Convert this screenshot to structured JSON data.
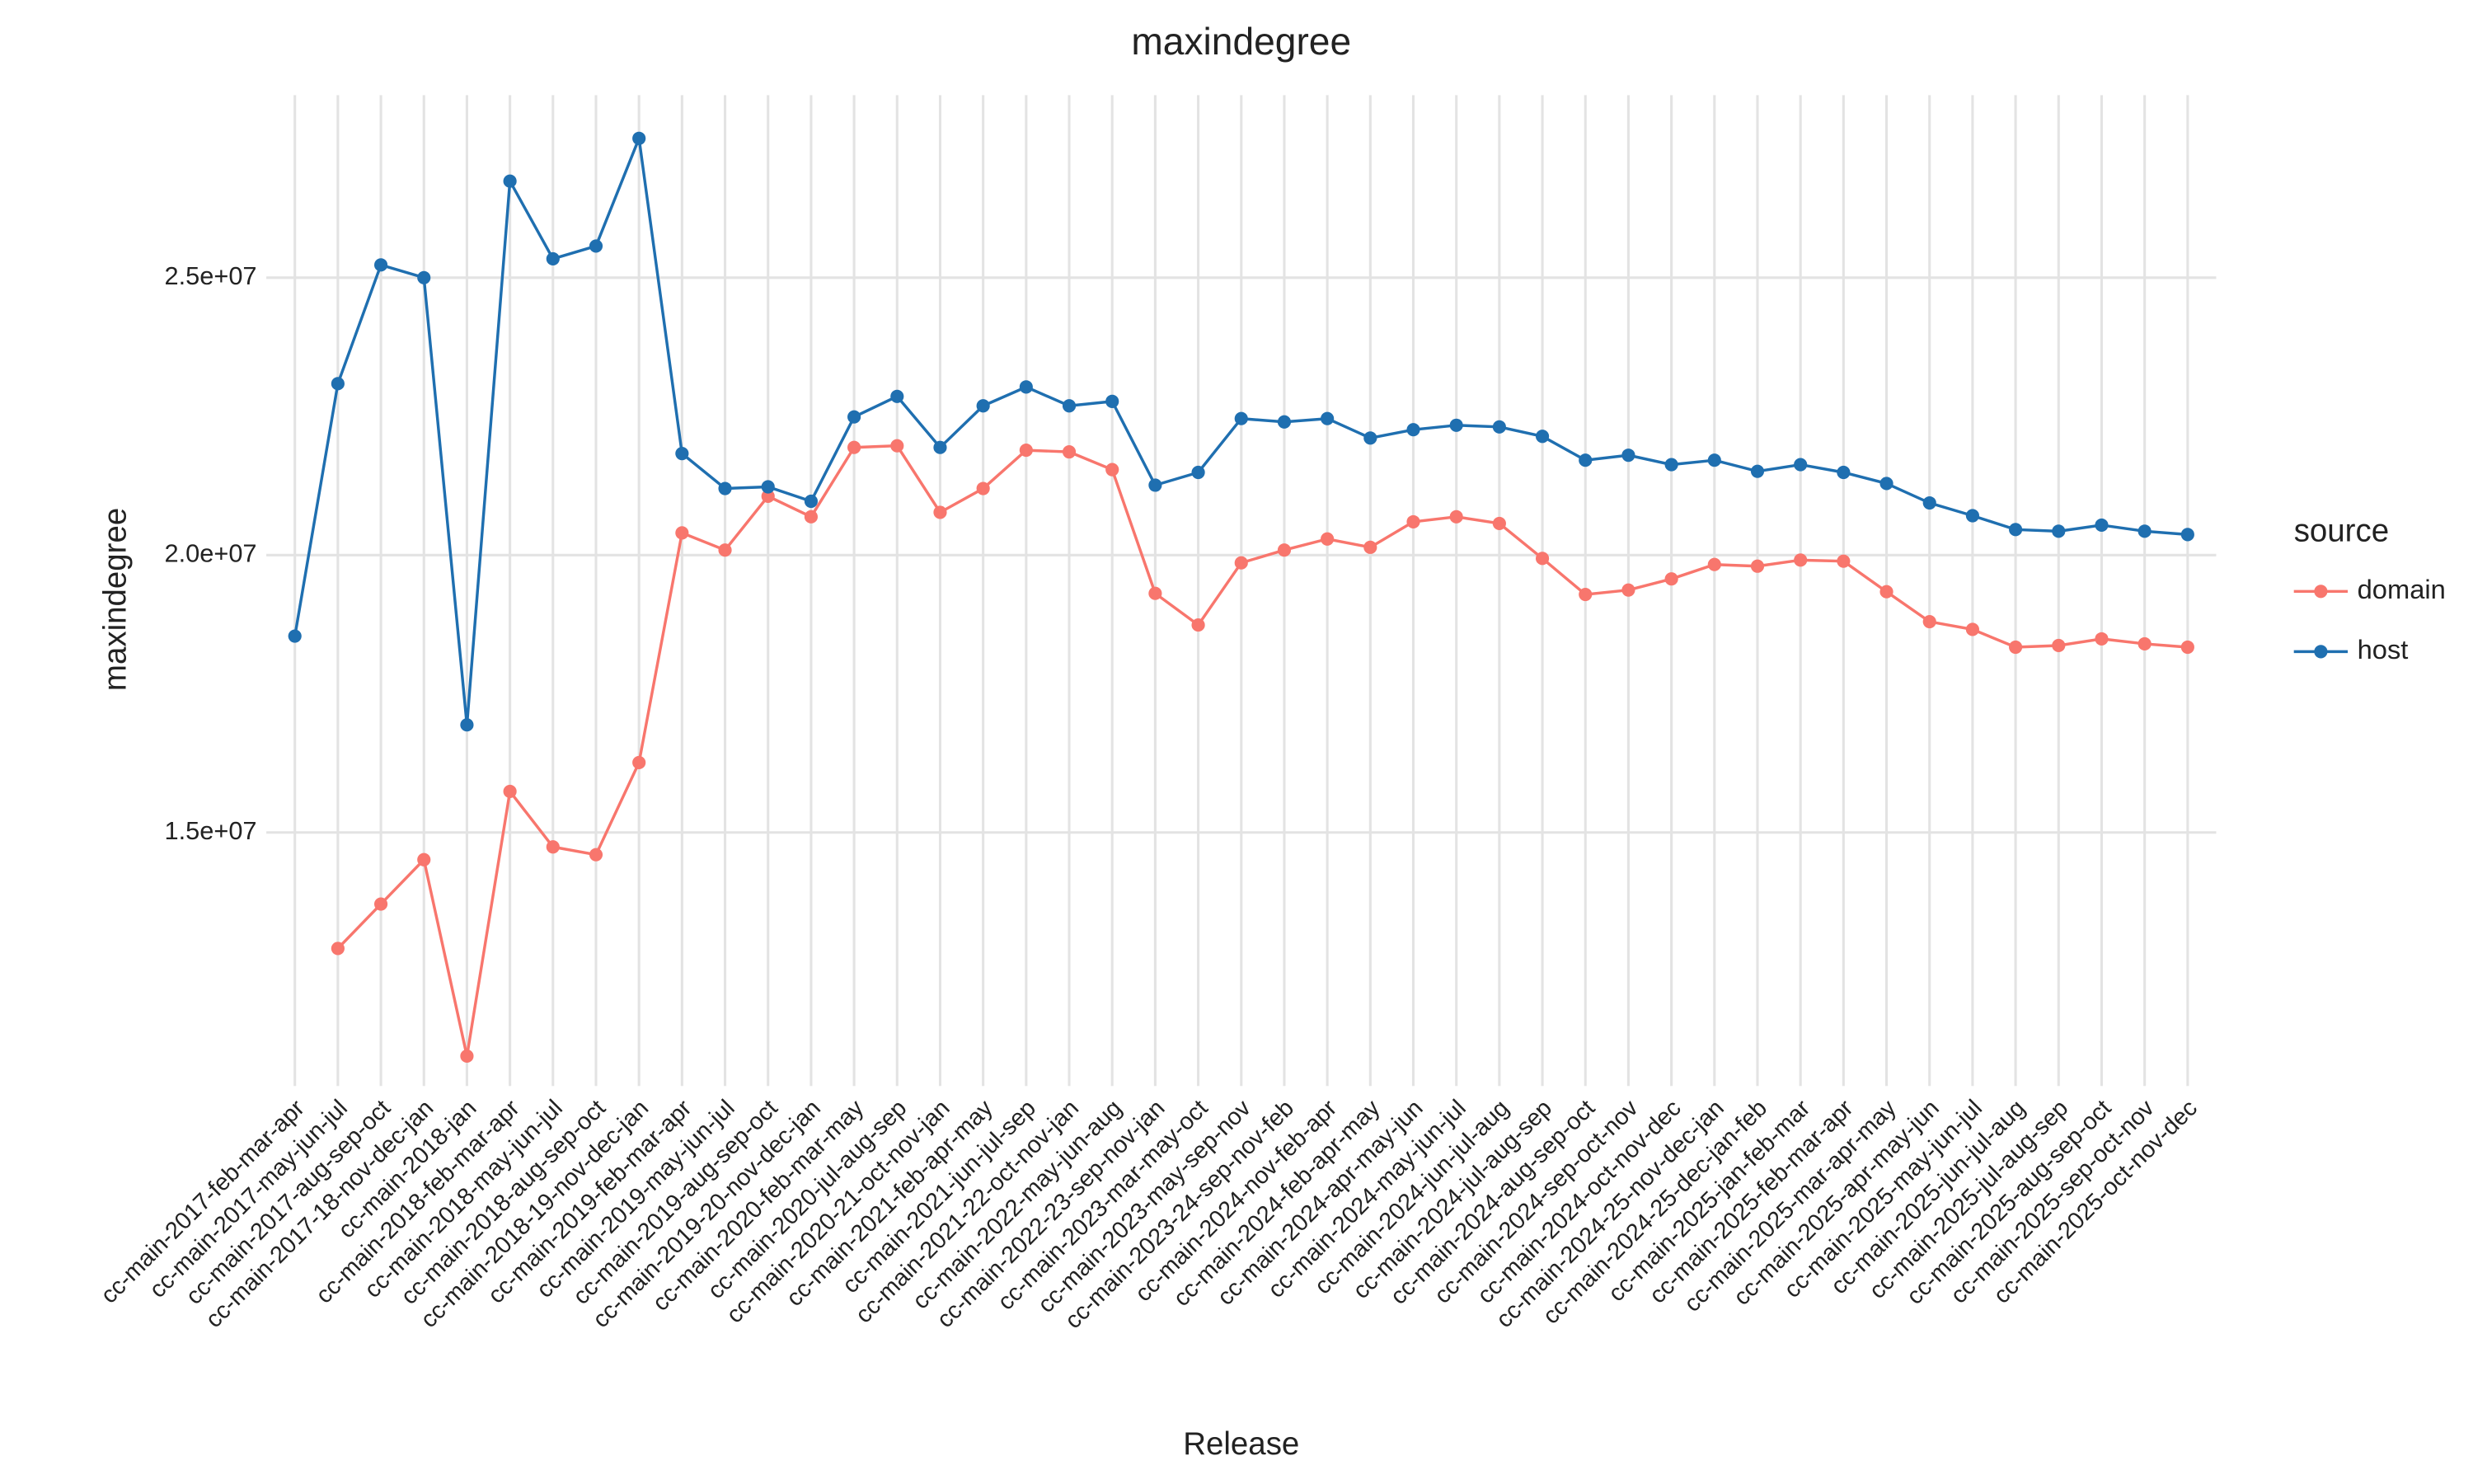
{
  "chart_data": {
    "type": "line",
    "title": "maxindegree",
    "x_label": "Release",
    "y_label": "maxindegree",
    "legend_title": "source",
    "legend_position": "right",
    "grid": true,
    "categories": [
      "cc-main-2017-feb-mar-apr",
      "cc-main-2017-may-jun-jul",
      "cc-main-2017-aug-sep-oct",
      "cc-main-2017-18-nov-dec-jan",
      "cc-main-2018-jan",
      "cc-main-2018-feb-mar-apr",
      "cc-main-2018-may-jun-jul",
      "cc-main-2018-aug-sep-oct",
      "cc-main-2018-19-nov-dec-jan",
      "cc-main-2019-feb-mar-apr",
      "cc-main-2019-may-jun-jul",
      "cc-main-2019-aug-sep-oct",
      "cc-main-2019-20-nov-dec-jan",
      "cc-main-2020-feb-mar-may",
      "cc-main-2020-jul-aug-sep",
      "cc-main-2020-21-oct-nov-jan",
      "cc-main-2021-feb-apr-may",
      "cc-main-2021-jun-jul-sep",
      "cc-main-2021-22-oct-nov-jan",
      "cc-main-2022-may-jun-aug",
      "cc-main-2022-23-sep-nov-jan",
      "cc-main-2023-mar-may-oct",
      "cc-main-2023-may-sep-nov",
      "cc-main-2023-24-sep-nov-feb",
      "cc-main-2024-nov-feb-apr",
      "cc-main-2024-feb-apr-may",
      "cc-main-2024-apr-may-jun",
      "cc-main-2024-may-jun-jul",
      "cc-main-2024-jun-jul-aug",
      "cc-main-2024-jul-aug-sep",
      "cc-main-2024-aug-sep-oct",
      "cc-main-2024-sep-oct-nov",
      "cc-main-2024-oct-nov-dec",
      "cc-main-2024-25-nov-dec-jan",
      "cc-main-2024-25-dec-jan-feb",
      "cc-main-2025-jan-feb-mar",
      "cc-main-2025-feb-mar-apr",
      "cc-main-2025-mar-apr-may",
      "cc-main-2025-apr-may-jun",
      "cc-main-2025-may-jun-jul",
      "cc-main-2025-jun-jul-aug",
      "cc-main-2025-jul-aug-sep",
      "cc-main-2025-aug-sep-oct",
      "cc-main-2025-sep-oct-nov",
      "cc-main-2025-oct-nov-dec"
    ],
    "series": [
      {
        "name": "domain",
        "color": "#F8766D",
        "values": [
          null,
          12910000,
          13710000,
          14510000,
          10970000,
          15740000,
          14740000,
          14600000,
          16260000,
          20400000,
          20090000,
          21060000,
          20690000,
          21940000,
          21970000,
          20770000,
          21200000,
          21890000,
          21860000,
          21540000,
          19310000,
          18740000,
          19860000,
          20090000,
          20290000,
          20140000,
          20600000,
          20690000,
          20570000,
          19940000,
          19290000,
          19370000,
          19570000,
          19830000,
          19800000,
          19910000,
          19890000,
          19340000,
          18800000,
          18660000,
          18340000,
          18370000,
          18490000,
          18400000,
          18340000
        ]
      },
      {
        "name": "host",
        "color": "#1F6FB0",
        "values": [
          18540000,
          23090000,
          25230000,
          25000000,
          16940000,
          26740000,
          25340000,
          25570000,
          27510000,
          21830000,
          21200000,
          21230000,
          20970000,
          22490000,
          22860000,
          21940000,
          22690000,
          23030000,
          22690000,
          22770000,
          21260000,
          21490000,
          22460000,
          22400000,
          22460000,
          22110000,
          22260000,
          22340000,
          22310000,
          22140000,
          21710000,
          21800000,
          21630000,
          21710000,
          21510000,
          21630000,
          21490000,
          21290000,
          20940000,
          20710000,
          20460000,
          20430000,
          20540000,
          20430000,
          20370000
        ]
      }
    ],
    "ylim": [
      10430000,
      28290000
    ],
    "yticks": [
      {
        "value": 15000000,
        "label": "1.5e+07"
      },
      {
        "value": 20000000,
        "label": "2.0e+07"
      },
      {
        "value": 25000000,
        "label": "2.5e+07"
      }
    ]
  }
}
